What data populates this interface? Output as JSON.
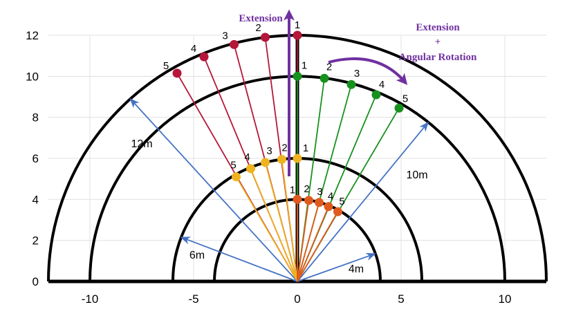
{
  "chart_data": {
    "type": "scatter",
    "title": "",
    "xlabel": "",
    "ylabel": "",
    "xlim": [
      -12,
      12
    ],
    "ylim": [
      0,
      12
    ],
    "xticks": [
      -10,
      -5,
      0,
      5,
      10
    ],
    "yticks": [
      0,
      2,
      4,
      6,
      8,
      10,
      12
    ],
    "grid": true,
    "semicircles": [
      {
        "radius": 12,
        "color": "#000000"
      },
      {
        "radius": 10,
        "color": "#000000"
      },
      {
        "radius": 6,
        "color": "#000000"
      },
      {
        "radius": 4,
        "color": "#000000"
      }
    ],
    "radius_arrows": [
      {
        "label": "12m",
        "to": [
          -8.05,
          8.9
        ]
      },
      {
        "label": "10m",
        "to": [
          6.3,
          7.75
        ]
      },
      {
        "label": "6m",
        "to": [
          -5.6,
          2.15
        ]
      },
      {
        "label": "4m",
        "to": [
          3.75,
          1.35
        ]
      }
    ],
    "series": [
      {
        "color": "#b5163a",
        "points": [
          {
            "label": "1",
            "x": 0,
            "y": 12
          },
          {
            "label": "2",
            "x": -1.55,
            "y": 11.9
          },
          {
            "label": "3",
            "x": -3.05,
            "y": 11.55
          },
          {
            "label": "4",
            "x": -4.5,
            "y": 10.95
          },
          {
            "label": "5",
            "x": -5.8,
            "y": 10.15
          }
        ]
      },
      {
        "color": "#f0b320",
        "points": [
          {
            "label": "1",
            "x": 0,
            "y": 6
          },
          {
            "label": "2",
            "x": -0.75,
            "y": 5.95
          },
          {
            "label": "3",
            "x": -1.55,
            "y": 5.8
          },
          {
            "label": "4",
            "x": -2.25,
            "y": 5.5
          },
          {
            "label": "5",
            "x": -2.95,
            "y": 5.1
          }
        ]
      },
      {
        "color": "#17911d",
        "points": [
          {
            "label": "1",
            "x": 0,
            "y": 10
          },
          {
            "label": "2",
            "x": 1.3,
            "y": 9.9
          },
          {
            "label": "3",
            "x": 2.6,
            "y": 9.6
          },
          {
            "label": "4",
            "x": 3.8,
            "y": 9.1
          },
          {
            "label": "5",
            "x": 4.9,
            "y": 8.45
          }
        ]
      },
      {
        "color": "#e15a1d",
        "points": [
          {
            "label": "1",
            "x": 0,
            "y": 4
          },
          {
            "label": "2",
            "x": 0.55,
            "y": 3.95
          },
          {
            "label": "3",
            "x": 1.05,
            "y": 3.85
          },
          {
            "label": "4",
            "x": 1.5,
            "y": 3.65
          },
          {
            "label": "5",
            "x": 1.95,
            "y": 3.4
          }
        ]
      }
    ],
    "annotations": [
      {
        "text": "Extension"
      },
      {
        "text": "Extension"
      },
      {
        "text": "+"
      },
      {
        "text": "Angular Rotation"
      }
    ],
    "colors": {
      "radius_arrow": "#4472c4",
      "annotation": "#7030a0",
      "axis": "#000000"
    }
  }
}
